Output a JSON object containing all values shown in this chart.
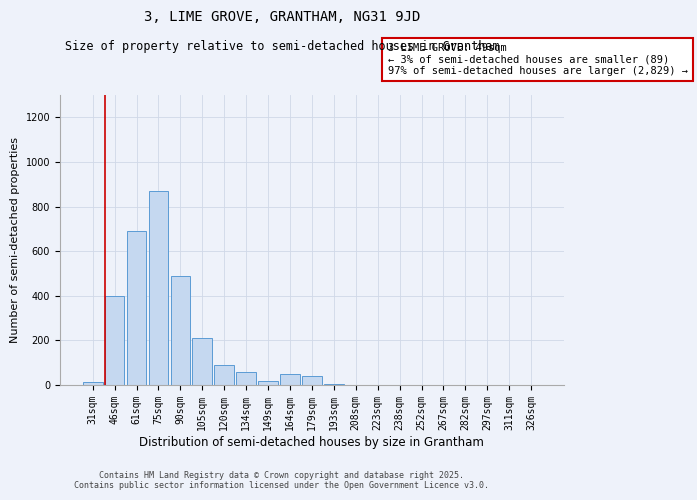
{
  "title": "3, LIME GROVE, GRANTHAM, NG31 9JD",
  "subtitle": "Size of property relative to semi-detached houses in Grantham",
  "xlabel": "Distribution of semi-detached houses by size in Grantham",
  "ylabel": "Number of semi-detached properties",
  "categories": [
    "31sqm",
    "46sqm",
    "61sqm",
    "75sqm",
    "90sqm",
    "105sqm",
    "120sqm",
    "134sqm",
    "149sqm",
    "164sqm",
    "179sqm",
    "193sqm",
    "208sqm",
    "223sqm",
    "238sqm",
    "252sqm",
    "267sqm",
    "282sqm",
    "297sqm",
    "311sqm",
    "326sqm"
  ],
  "values": [
    15,
    400,
    690,
    870,
    490,
    210,
    90,
    60,
    20,
    50,
    40,
    5,
    2,
    1,
    1,
    1,
    0,
    0,
    0,
    0,
    1
  ],
  "bar_color": "#c5d8f0",
  "bar_edge_color": "#5b9bd5",
  "grid_color": "#d0d8e8",
  "vline_color": "#cc0000",
  "annotation_text": "3 LIME GROVE: 49sqm\n← 3% of semi-detached houses are smaller (89)\n97% of semi-detached houses are larger (2,829) →",
  "annotation_box_color": "#ffffff",
  "annotation_box_edge": "#cc0000",
  "ylim": [
    0,
    1300
  ],
  "yticks": [
    0,
    200,
    400,
    600,
    800,
    1000,
    1200
  ],
  "footer_line1": "Contains HM Land Registry data © Crown copyright and database right 2025.",
  "footer_line2": "Contains public sector information licensed under the Open Government Licence v3.0.",
  "background_color": "#eef2fa",
  "title_fontsize": 10,
  "subtitle_fontsize": 8.5,
  "ylabel_fontsize": 8,
  "xlabel_fontsize": 8.5,
  "tick_fontsize": 7,
  "footer_fontsize": 6
}
